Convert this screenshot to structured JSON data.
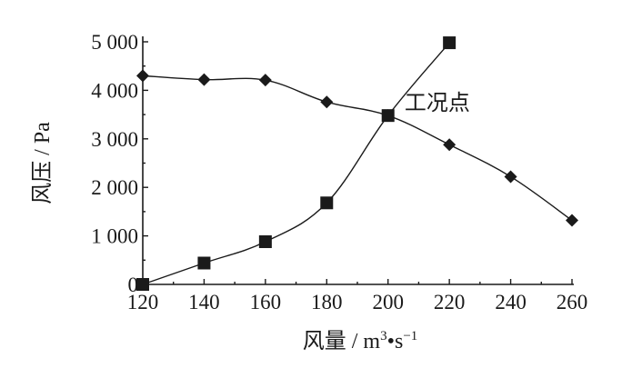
{
  "chart_data": {
    "type": "line",
    "xlabel": "风量 / m³·s⁻¹",
    "xlabel_parts": {
      "main": "风量 / m",
      "sup1": "3",
      "mid": "•s",
      "sup2": "−1"
    },
    "ylabel": "风压 / Pa",
    "xlim": [
      120,
      260
    ],
    "ylim": [
      0,
      5000
    ],
    "x_ticks": [
      120,
      140,
      160,
      180,
      200,
      220,
      240,
      260
    ],
    "x_tick_labels": [
      "120",
      "140",
      "160",
      "180",
      "200",
      "220",
      "240",
      "260"
    ],
    "y_ticks": [
      0,
      1000,
      2000,
      3000,
      4000,
      5000
    ],
    "y_tick_labels": [
      "0",
      "1 000",
      "2 000",
      "3 000",
      "4 000",
      "5 000"
    ],
    "series": [
      {
        "marker": "diamond",
        "color": "#1a1a1a",
        "x": [
          120,
          140,
          160,
          180,
          200,
          220,
          240,
          260
        ],
        "y": [
          4300,
          4220,
          4210,
          3760,
          3480,
          2880,
          2220,
          1320
        ]
      },
      {
        "marker": "square",
        "color": "#1a1a1a",
        "x": [
          120,
          140,
          160,
          180,
          200,
          220
        ],
        "y": [
          0,
          440,
          880,
          1680,
          3480,
          4980
        ]
      }
    ],
    "annotations": [
      {
        "text": "工况点",
        "x": 203,
        "y": 3750
      }
    ],
    "grid": false
  }
}
